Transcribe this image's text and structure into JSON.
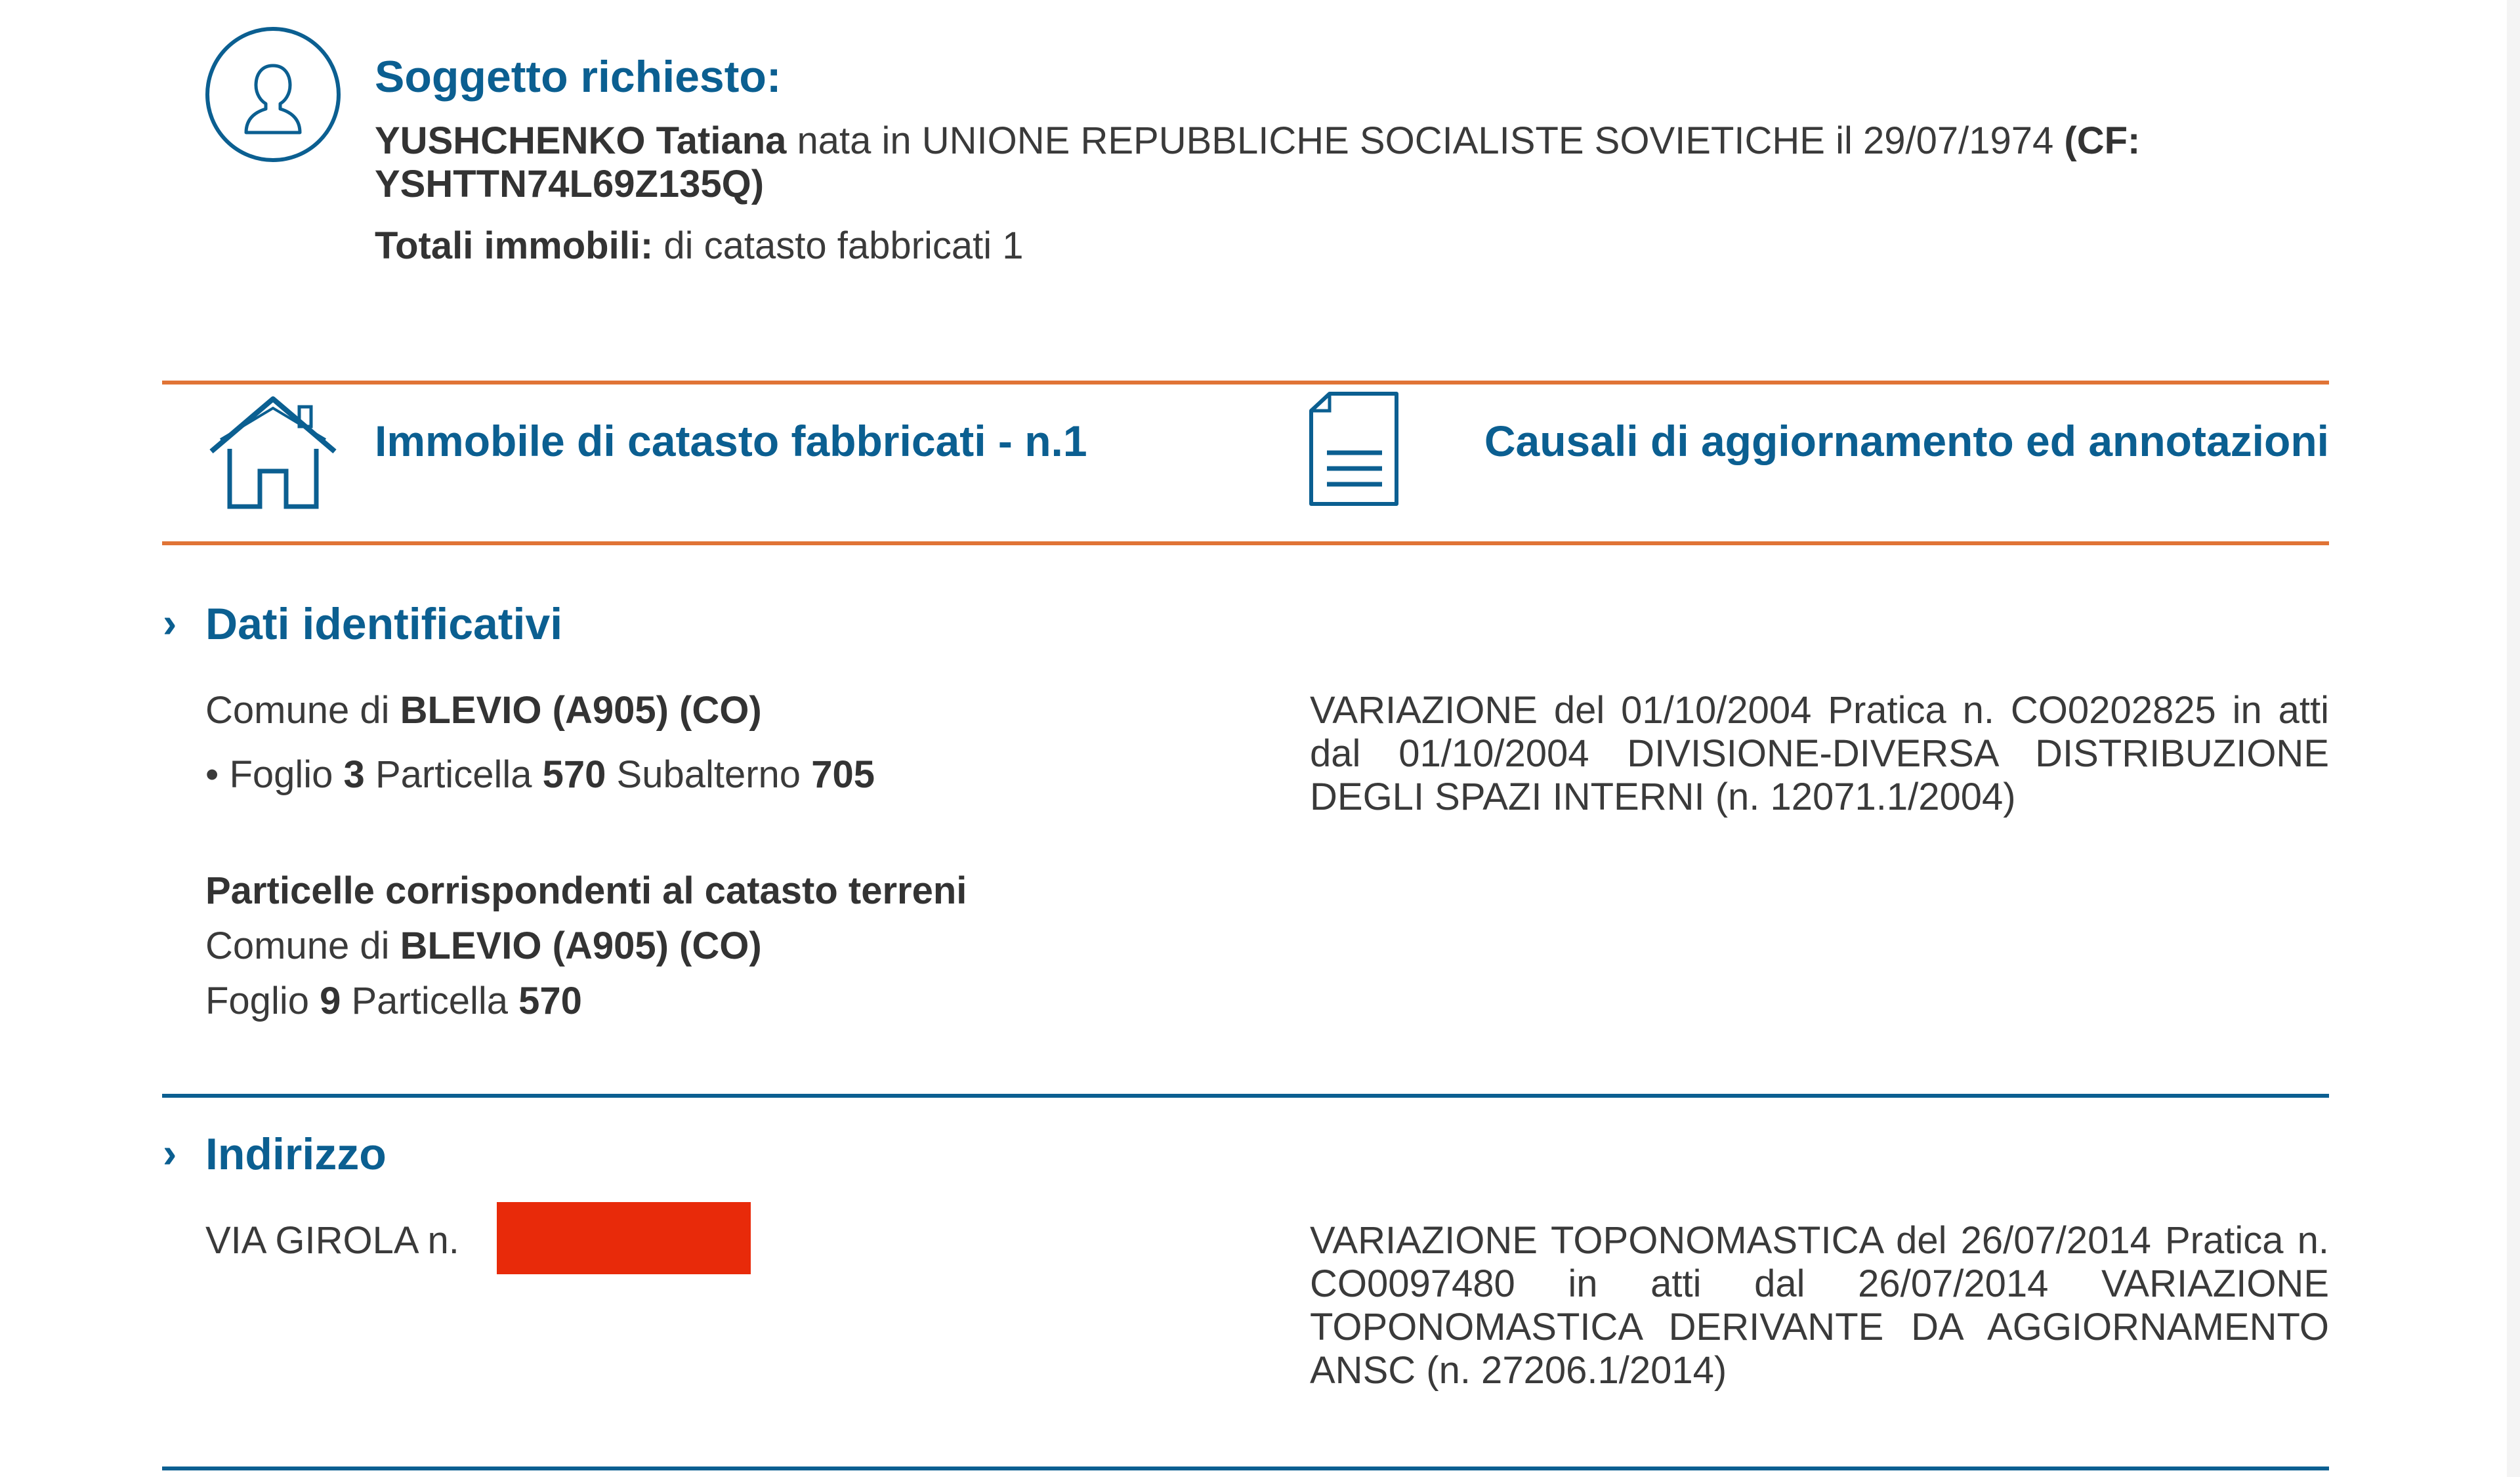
{
  "subject": {
    "title": "Soggetto richiesto:",
    "surname": "YUSHCHENKO",
    "name": "Tatiana",
    "birth_text": "nata in UNIONE REPUBBLICHE SOCIALISTE SOVIETICHE  il 29/07/1974",
    "cf_label": "(CF:",
    "cf_value": "YSHTTN74L69Z135Q)",
    "totals_label": "Totali immobili:",
    "totals_value": "di catasto fabbricati 1",
    "icon": "user-icon"
  },
  "header": {
    "property_title": "Immobile di catasto fabbricati - n.1",
    "property_icon": "house-icon",
    "causali_title": "Causali di aggiornamento ed annotazioni",
    "causali_icon": "document-icon"
  },
  "dati": {
    "title": "Dati identificativi",
    "comune_prefix": "Comune di",
    "comune": "BLEVIO (A905) (CO)",
    "bullet": "•",
    "foglio_label": "Foglio",
    "foglio": "3",
    "particella_label": "Particella",
    "particella": "570",
    "subalterno_label": "Subalterno",
    "subalterno": "705",
    "terreni_title": "Particelle corrispondenti al catasto terreni",
    "terreni_comune_prefix": "Comune di",
    "terreni_comune": "BLEVIO (A905) (CO)",
    "terreni_foglio_label": "Foglio",
    "terreni_foglio": "9",
    "terreni_particella_label": "Particella",
    "terreni_particella": "570",
    "causale": "VARIAZIONE del 01/10/2004 Pratica n. CO0202825  in atti dal 01/10/2004 DIVISIONE-DIVERSA DISTRIBUZIONE DEGLI SPAZI INTERNI (n. 12071.1/2004)"
  },
  "indirizzo": {
    "title": "Indirizzo",
    "address": "VIA GIROLA n.",
    "redaction_color": "#e82a0a",
    "causale": "VARIAZIONE TOPONOMASTICA del 26/07/2014 Pratica n. CO0097480  in atti dal 26/07/2014 VARIAZIONE TOPONOMASTICA DERIVANTE DA AGGIORNAMENTO ANSC (n. 27206.1/2014)"
  },
  "colors": {
    "accent_blue": "#0b5f91",
    "accent_orange": "#e07436",
    "text": "#3a3a3a"
  }
}
